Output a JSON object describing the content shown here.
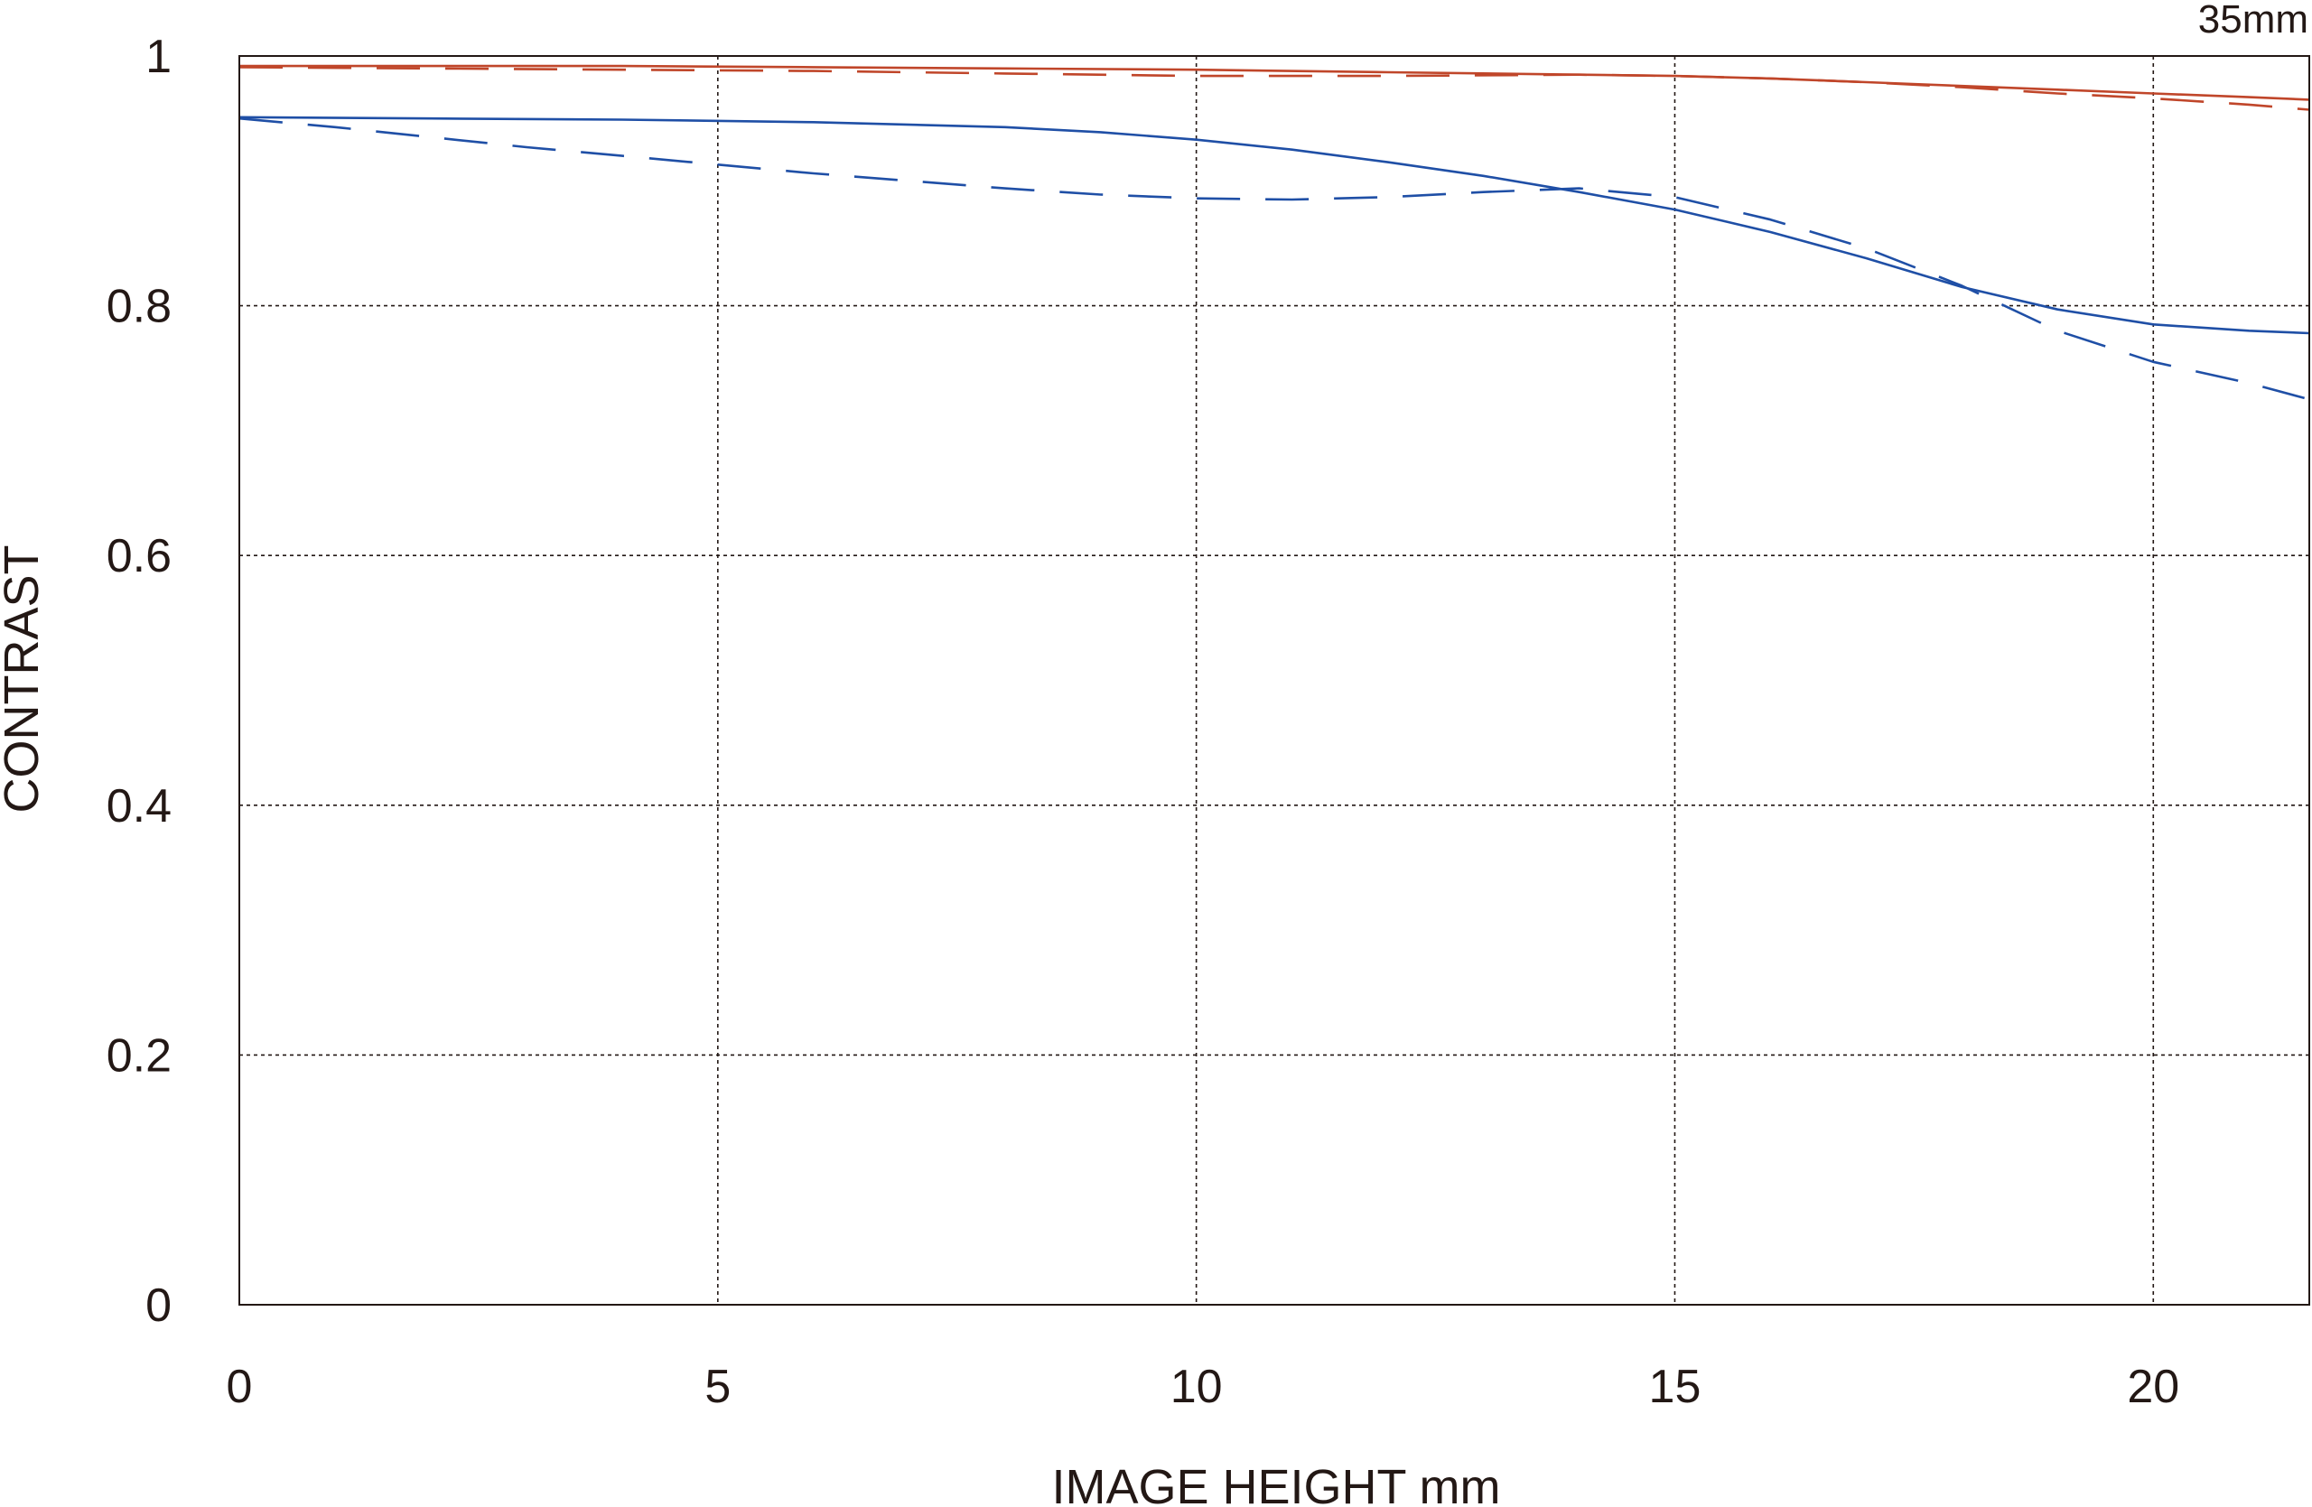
{
  "chart_data": {
    "type": "line",
    "title": "",
    "corner_label": "35mm",
    "xlabel": "IMAGE HEIGHT  mm",
    "ylabel": "CONTRAST",
    "xlim": [
      0,
      21.63
    ],
    "ylim": [
      0,
      1
    ],
    "x_ticks": [
      0,
      5,
      10,
      15,
      20
    ],
    "x_tick_labels": [
      "0",
      "5",
      "10",
      "15",
      "20"
    ],
    "y_ticks": [
      0,
      0.2,
      0.4,
      0.6,
      0.8,
      1
    ],
    "y_tick_labels": [
      "0",
      "0.2",
      "0.4",
      "0.6",
      "0.8",
      "1"
    ],
    "grid": true,
    "colors": {
      "red": "#c0462a",
      "blue": "#1f4fa6",
      "grid": "#231815",
      "text": "#231815"
    },
    "series": [
      {
        "color": "#c0462a",
        "dash": "solid",
        "x": [
          0,
          2,
          4,
          6,
          8,
          10,
          12,
          14,
          15,
          16,
          17,
          18,
          19,
          20,
          21,
          21.63
        ],
        "y": [
          0.992,
          0.992,
          0.992,
          0.991,
          0.99,
          0.989,
          0.987,
          0.985,
          0.984,
          0.982,
          0.979,
          0.976,
          0.973,
          0.97,
          0.967,
          0.965
        ]
      },
      {
        "color": "#c0462a",
        "dash": "dashed",
        "x": [
          0,
          2,
          4,
          6,
          8,
          10,
          12,
          14,
          15,
          16,
          17,
          18,
          19,
          20,
          21,
          21.63
        ],
        "y": [
          0.991,
          0.99,
          0.989,
          0.988,
          0.986,
          0.984,
          0.984,
          0.985,
          0.984,
          0.982,
          0.979,
          0.975,
          0.97,
          0.966,
          0.961,
          0.957
        ]
      },
      {
        "color": "#1f4fa6",
        "dash": "solid",
        "x": [
          0,
          2,
          4,
          6,
          8,
          9,
          10,
          11,
          12,
          13,
          14,
          15,
          16,
          17,
          18,
          19,
          20,
          21,
          21.63
        ],
        "y": [
          0.951,
          0.95,
          0.949,
          0.947,
          0.943,
          0.939,
          0.933,
          0.925,
          0.915,
          0.904,
          0.891,
          0.877,
          0.859,
          0.838,
          0.815,
          0.797,
          0.785,
          0.78,
          0.778
        ]
      },
      {
        "color": "#1f4fa6",
        "dash": "dashed",
        "x": [
          0,
          1,
          2,
          3,
          4,
          5,
          6,
          7,
          8,
          9,
          10,
          11,
          12,
          13,
          14,
          15,
          16,
          17,
          18,
          19,
          20,
          21,
          21.63
        ],
        "y": [
          0.95,
          0.943,
          0.935,
          0.927,
          0.92,
          0.913,
          0.906,
          0.9,
          0.894,
          0.889,
          0.886,
          0.885,
          0.887,
          0.891,
          0.894,
          0.887,
          0.869,
          0.846,
          0.816,
          0.78,
          0.755,
          0.738,
          0.725
        ]
      }
    ]
  }
}
